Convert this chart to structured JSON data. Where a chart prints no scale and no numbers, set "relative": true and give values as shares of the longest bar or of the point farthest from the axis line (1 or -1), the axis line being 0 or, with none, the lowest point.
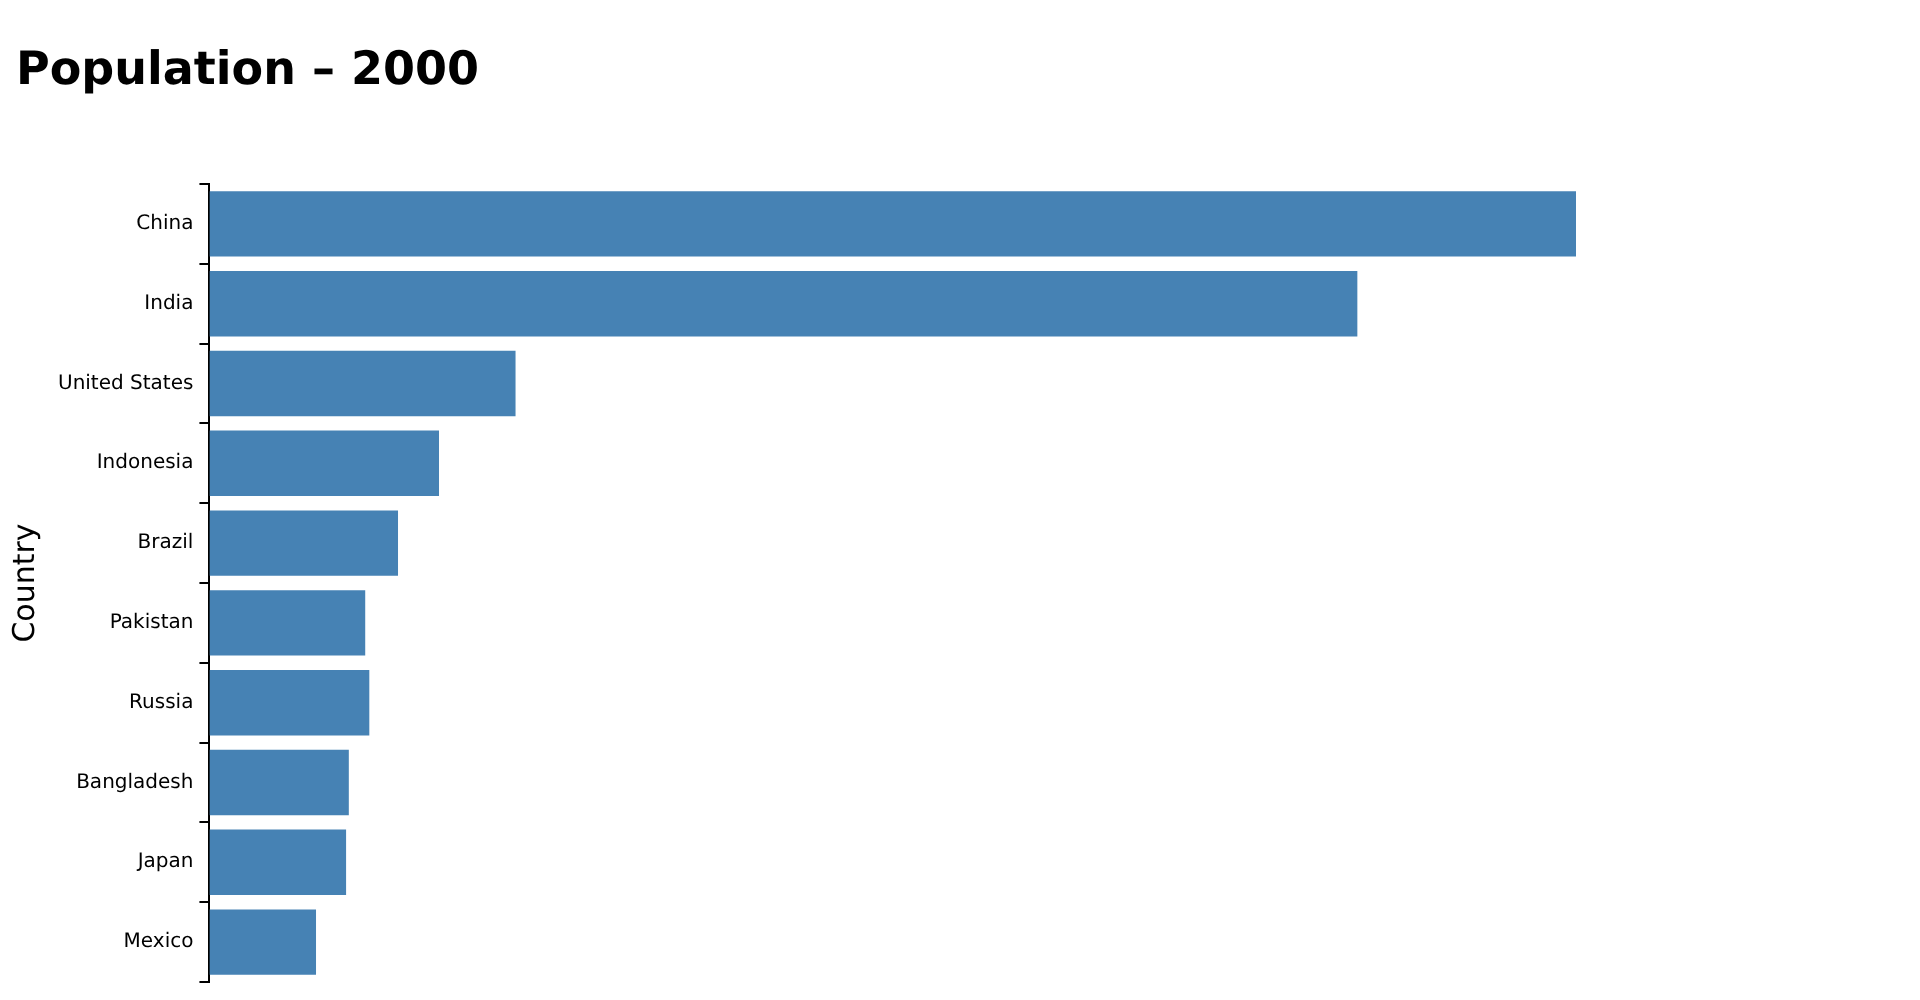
{
  "chart_data": {
    "type": "bar",
    "title": "Population – 2000",
    "ylabel": "Country",
    "orientation": "horizontal",
    "relative": true,
    "categories": [
      "China",
      "India",
      "United States",
      "Indonesia",
      "Brazil",
      "Pakistan",
      "Russia",
      "Bangladesh",
      "Japan",
      "Mexico"
    ],
    "values": [
      1,
      0.84,
      0.224,
      0.168,
      0.138,
      0.114,
      0.117,
      0.102,
      0.1,
      0.078
    ],
    "color": "#4682b4"
  }
}
